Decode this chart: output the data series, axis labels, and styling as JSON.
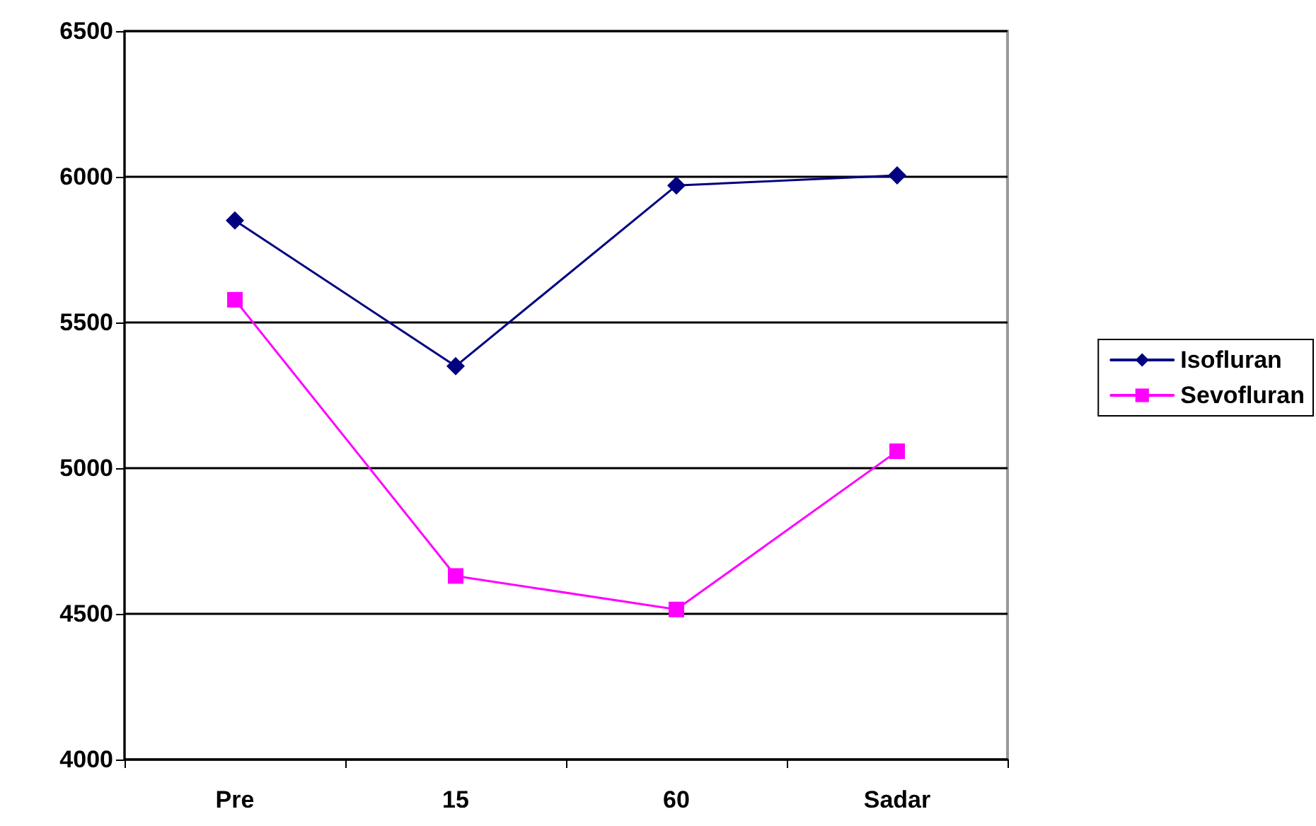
{
  "chart_data": {
    "type": "line",
    "categories": [
      "Pre",
      "15",
      "60",
      "Sadar"
    ],
    "series": [
      {
        "name": "Isofluran",
        "color": "#000080",
        "marker": "diamond",
        "values": [
          5850,
          5350,
          5970,
          6005
        ]
      },
      {
        "name": "Sevofluran",
        "color": "#ff00ff",
        "marker": "square",
        "values": [
          5578,
          4630,
          4515,
          5058
        ]
      }
    ],
    "ylim": [
      4000,
      6500
    ],
    "yticks": [
      4000,
      4500,
      5000,
      5500,
      6000,
      6500
    ],
    "grid": "y",
    "legend": "right",
    "line_style": "solid"
  }
}
